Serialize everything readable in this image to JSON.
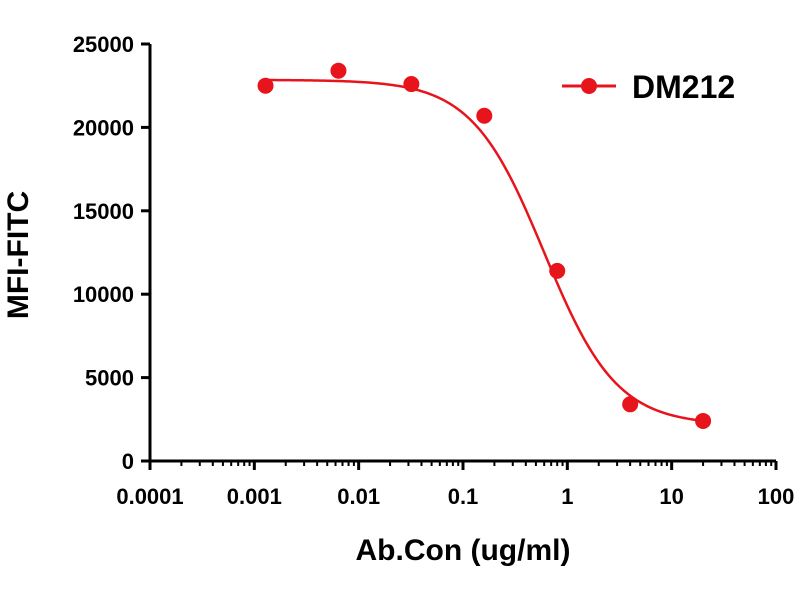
{
  "chart_data": {
    "type": "scatter",
    "xlabel": "Ab.Con (ug/ml)",
    "ylabel": "MFI-FITC",
    "x_scale": "log",
    "xlim": [
      0.0001,
      100
    ],
    "ylim": [
      0,
      25000
    ],
    "x_ticks": [
      0.0001,
      0.001,
      0.01,
      0.1,
      1,
      10,
      100
    ],
    "x_tick_labels": [
      "0.0001",
      "0.001",
      "0.01",
      "0.1",
      "1",
      "10",
      "100"
    ],
    "y_ticks": [
      0,
      5000,
      10000,
      15000,
      20000,
      25000
    ],
    "y_tick_labels": [
      "0",
      "5000",
      "10000",
      "15000",
      "20000",
      "25000"
    ],
    "grid": false,
    "legend_position": "top-right",
    "series": [
      {
        "name": "DM212",
        "color": "#e8141c",
        "marker": "circle",
        "x": [
          0.00128,
          0.0064,
          0.032,
          0.16,
          0.8,
          4,
          20
        ],
        "y": [
          22500,
          23400,
          22600,
          20700,
          11400,
          3400,
          2400
        ],
        "fit": {
          "model": "4PL",
          "top": 22850,
          "bottom": 2150,
          "ec50": 0.6,
          "hill": 1.25
        }
      }
    ]
  }
}
